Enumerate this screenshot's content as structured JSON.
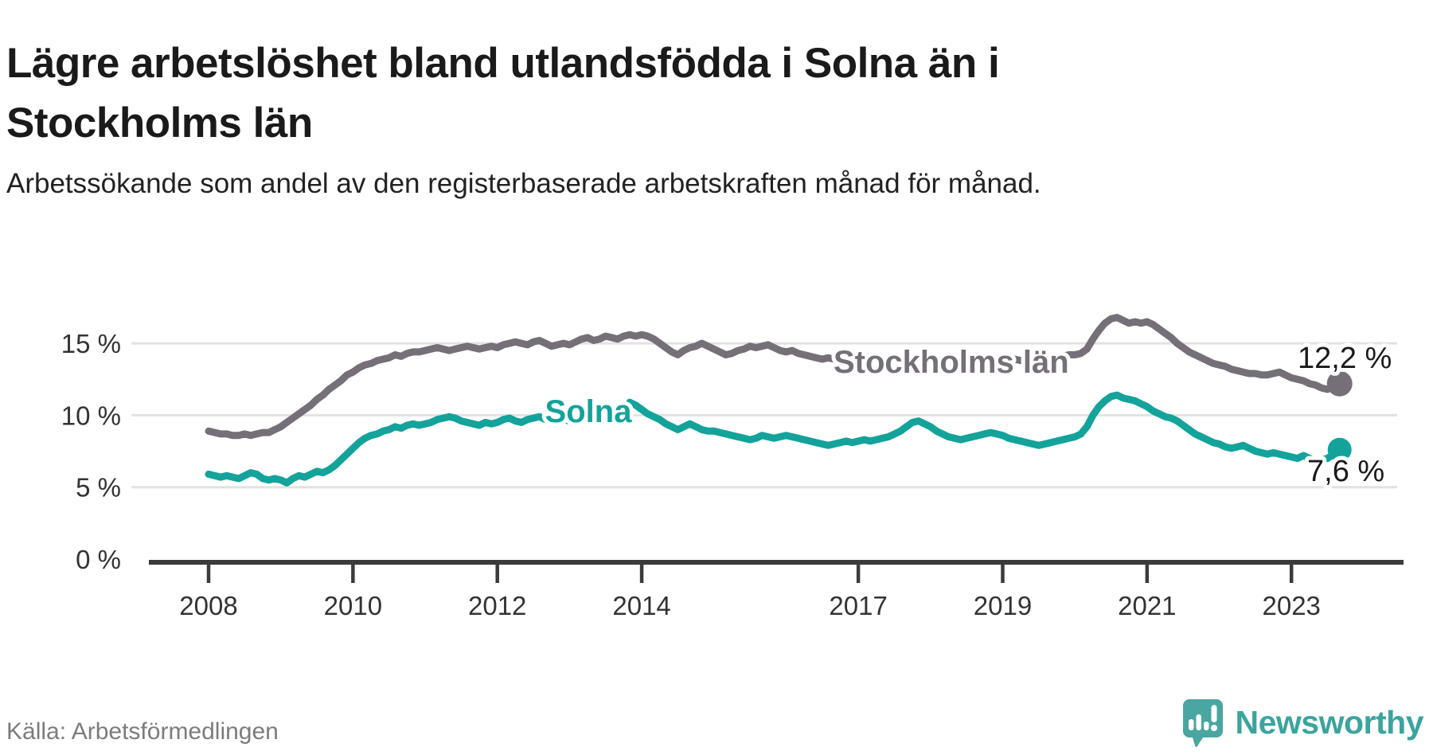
{
  "header": {
    "title": "Lägre arbetslöshet bland utlandsfödda i Solna än i Stockholms län",
    "subtitle": "Arbetssökande som andel av den registerbaserade arbetskraften månad för månad."
  },
  "footer": {
    "source": "Källa: Arbetsförmedlingen",
    "brand": "Newsworthy"
  },
  "colors": {
    "stockholm_line": "#757078",
    "solna_line": "#13a39a",
    "grid": "#e2e2e2",
    "axis": "#3b3b3b",
    "axis_text": "#333333",
    "value_text": "#1a1a1a",
    "brand_teal": "#3ba49e",
    "icon_teal": "#4aa6a1"
  },
  "chart_data": {
    "type": "line",
    "title": "Lägre arbetslöshet bland utlandsfödda i Solna än i Stockholms län",
    "xlabel": "",
    "ylabel": "Arbetssökande som andel av den registerbaserade arbetskraften",
    "grid": "horizontal-only",
    "x_start_year": 2008,
    "x_months_per_point": 1,
    "xlim": [
      2007.17,
      2024.55
    ],
    "ylim": [
      0,
      18.5
    ],
    "yticks": [
      {
        "value": 0,
        "label": "0 %"
      },
      {
        "value": 5,
        "label": "5 %"
      },
      {
        "value": 10,
        "label": "10 %"
      },
      {
        "value": 15,
        "label": "15 %"
      }
    ],
    "xticks": [
      {
        "value": 2008,
        "label": "2008"
      },
      {
        "value": 2010,
        "label": "2010"
      },
      {
        "value": 2012,
        "label": "2012"
      },
      {
        "value": 2014,
        "label": "2014"
      },
      {
        "value": 2017,
        "label": "2017"
      },
      {
        "value": 2019,
        "label": "2019"
      },
      {
        "value": 2021,
        "label": "2021"
      },
      {
        "value": 2023,
        "label": "2023"
      }
    ],
    "series": [
      {
        "name": "Stockholms län",
        "color": "#757078",
        "end_label": "12,2 %",
        "end_value": 12.2,
        "values": [
          8.9,
          8.8,
          8.7,
          8.7,
          8.6,
          8.6,
          8.7,
          8.6,
          8.7,
          8.8,
          8.8,
          9.0,
          9.2,
          9.5,
          9.8,
          10.1,
          10.4,
          10.7,
          11.1,
          11.4,
          11.8,
          12.1,
          12.4,
          12.8,
          13.0,
          13.3,
          13.5,
          13.6,
          13.8,
          13.9,
          14.0,
          14.2,
          14.1,
          14.3,
          14.4,
          14.4,
          14.5,
          14.6,
          14.7,
          14.6,
          14.5,
          14.6,
          14.7,
          14.8,
          14.7,
          14.6,
          14.7,
          14.8,
          14.7,
          14.9,
          15.0,
          15.1,
          15.0,
          14.9,
          15.1,
          15.2,
          15.0,
          14.8,
          14.9,
          15.0,
          14.9,
          15.1,
          15.3,
          15.4,
          15.2,
          15.3,
          15.5,
          15.4,
          15.3,
          15.5,
          15.6,
          15.5,
          15.6,
          15.5,
          15.3,
          15.0,
          14.7,
          14.4,
          14.2,
          14.5,
          14.7,
          14.8,
          15.0,
          14.8,
          14.6,
          14.4,
          14.2,
          14.3,
          14.5,
          14.6,
          14.8,
          14.7,
          14.8,
          14.9,
          14.7,
          14.5,
          14.4,
          14.5,
          14.3,
          14.2,
          14.1,
          14.0,
          13.9,
          14.0,
          13.9,
          13.8,
          13.9,
          14.0,
          13.9,
          14.0,
          14.1,
          14.0,
          13.9,
          13.8,
          13.9,
          14.0,
          14.1,
          14.0,
          13.9,
          14.0,
          13.9,
          13.8,
          13.9,
          14.0,
          13.9,
          13.8,
          13.9,
          13.8,
          13.7,
          13.8,
          13.9,
          13.8,
          13.7,
          13.8,
          13.9,
          13.8,
          13.9,
          14.0,
          13.9,
          13.8,
          13.9,
          14.0,
          14.1,
          14.2,
          14.2,
          14.3,
          14.6,
          15.3,
          15.9,
          16.4,
          16.7,
          16.8,
          16.6,
          16.4,
          16.5,
          16.4,
          16.5,
          16.3,
          16.0,
          15.7,
          15.4,
          15.0,
          14.7,
          14.4,
          14.2,
          14.0,
          13.8,
          13.6,
          13.5,
          13.4,
          13.2,
          13.1,
          13.0,
          12.9,
          12.9,
          12.8,
          12.8,
          12.9,
          13.0,
          12.8,
          12.6,
          12.5,
          12.4,
          12.2,
          12.1,
          11.9,
          11.8,
          12.0,
          12.2
        ]
      },
      {
        "name": "Solna",
        "color": "#13a39a",
        "end_label": "7,6 %",
        "end_value": 7.6,
        "values": [
          5.9,
          5.8,
          5.7,
          5.8,
          5.7,
          5.6,
          5.8,
          6.0,
          5.9,
          5.6,
          5.5,
          5.6,
          5.5,
          5.3,
          5.6,
          5.8,
          5.7,
          5.9,
          6.1,
          6.0,
          6.2,
          6.5,
          6.9,
          7.3,
          7.7,
          8.1,
          8.4,
          8.6,
          8.7,
          8.9,
          9.0,
          9.2,
          9.1,
          9.3,
          9.4,
          9.3,
          9.4,
          9.5,
          9.7,
          9.8,
          9.9,
          9.8,
          9.6,
          9.5,
          9.4,
          9.3,
          9.5,
          9.4,
          9.5,
          9.7,
          9.8,
          9.6,
          9.5,
          9.7,
          9.8,
          9.9,
          9.7,
          9.6,
          9.8,
          9.7,
          9.6,
          9.8,
          9.9,
          9.8,
          9.7,
          9.9,
          9.8,
          9.7,
          9.9,
          10.0,
          10.9,
          10.7,
          10.4,
          10.1,
          9.9,
          9.7,
          9.4,
          9.2,
          9.0,
          9.2,
          9.4,
          9.2,
          9.0,
          8.9,
          8.9,
          8.8,
          8.7,
          8.6,
          8.5,
          8.4,
          8.3,
          8.4,
          8.6,
          8.5,
          8.4,
          8.5,
          8.6,
          8.5,
          8.4,
          8.3,
          8.2,
          8.1,
          8.0,
          7.9,
          8.0,
          8.1,
          8.2,
          8.1,
          8.2,
          8.3,
          8.2,
          8.3,
          8.4,
          8.5,
          8.7,
          8.9,
          9.2,
          9.5,
          9.6,
          9.4,
          9.2,
          8.9,
          8.7,
          8.5,
          8.4,
          8.3,
          8.4,
          8.5,
          8.6,
          8.7,
          8.8,
          8.7,
          8.6,
          8.4,
          8.3,
          8.2,
          8.1,
          8.0,
          7.9,
          8.0,
          8.1,
          8.2,
          8.3,
          8.4,
          8.5,
          8.7,
          9.2,
          10.0,
          10.6,
          11.0,
          11.3,
          11.4,
          11.2,
          11.1,
          11.0,
          10.8,
          10.6,
          10.3,
          10.1,
          9.9,
          9.8,
          9.6,
          9.3,
          9.0,
          8.7,
          8.5,
          8.3,
          8.1,
          8.0,
          7.8,
          7.7,
          7.8,
          7.9,
          7.7,
          7.5,
          7.4,
          7.3,
          7.4,
          7.3,
          7.2,
          7.1,
          7.0,
          7.2,
          7.0,
          6.8,
          6.9,
          7.0,
          7.3,
          7.6
        ]
      }
    ]
  }
}
